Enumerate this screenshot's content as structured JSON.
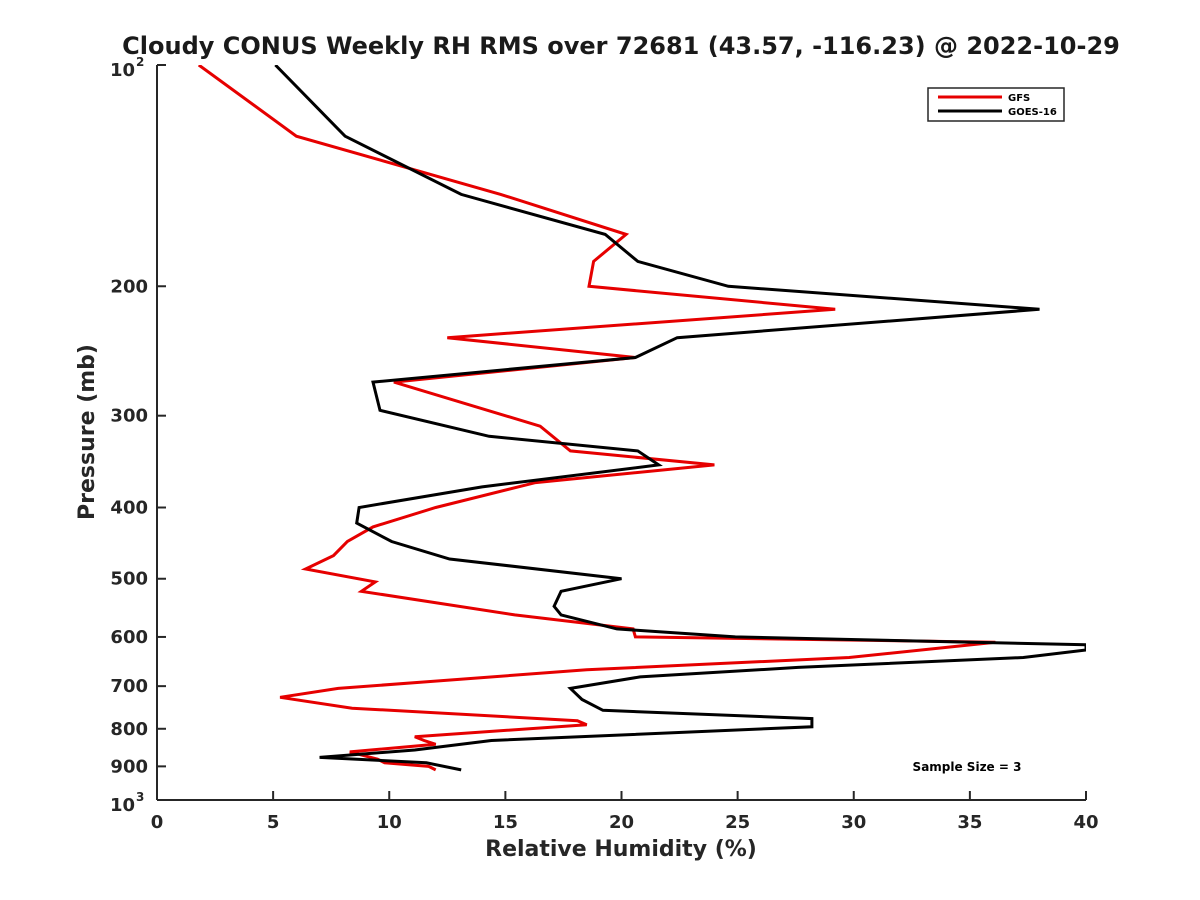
{
  "chart_data": {
    "type": "line",
    "title": "Cloudy CONUS Weekly RH RMS over 72681 (43.57, -116.23) @ 2022-10-29",
    "xlabel": "Relative Humidity (%)",
    "ylabel": "Pressure (mb)",
    "xlim": [
      0,
      40
    ],
    "ylim": [
      100,
      1000
    ],
    "y_scale": "log",
    "y_reversed": true,
    "grid": false,
    "legend_position": "top-right",
    "annotation": "Sample Size = 3",
    "x_ticks": [
      0,
      5,
      10,
      15,
      20,
      25,
      30,
      35,
      40
    ],
    "x_tick_labels": [
      "0",
      "5",
      "10",
      "15",
      "20",
      "25",
      "30",
      "35",
      "40"
    ],
    "y_ticks": [
      100,
      200,
      300,
      400,
      500,
      600,
      700,
      800,
      900,
      1000
    ],
    "y_tick_labels": [
      {
        "base": "10",
        "exp": "2"
      },
      {
        "base": "200"
      },
      {
        "base": "300"
      },
      {
        "base": "400"
      },
      {
        "base": "500"
      },
      {
        "base": "600"
      },
      {
        "base": "700"
      },
      {
        "base": "800"
      },
      {
        "base": "900"
      },
      {
        "base": "10",
        "exp": "3"
      }
    ],
    "series": [
      {
        "name": "GFS",
        "color": "#e60000",
        "points": [
          [
            1.8,
            100
          ],
          [
            6.0,
            125
          ],
          [
            14.8,
            150
          ],
          [
            20.2,
            170
          ],
          [
            18.8,
            185
          ],
          [
            18.6,
            200
          ],
          [
            29.2,
            215
          ],
          [
            12.5,
            235
          ],
          [
            20.6,
            250
          ],
          [
            10.2,
            270
          ],
          [
            16.5,
            310
          ],
          [
            17.8,
            335
          ],
          [
            24.0,
            350
          ],
          [
            16.3,
            370
          ],
          [
            12.0,
            400
          ],
          [
            9.3,
            425
          ],
          [
            8.2,
            445
          ],
          [
            7.6,
            465
          ],
          [
            6.4,
            485
          ],
          [
            9.4,
            505
          ],
          [
            8.8,
            520
          ],
          [
            15.4,
            560
          ],
          [
            20.5,
            585
          ],
          [
            20.6,
            600
          ],
          [
            36.1,
            610
          ],
          [
            29.8,
            640
          ],
          [
            18.5,
            665
          ],
          [
            11.7,
            690
          ],
          [
            7.8,
            705
          ],
          [
            5.3,
            725
          ],
          [
            8.4,
            750
          ],
          [
            18.1,
            780
          ],
          [
            18.5,
            790
          ],
          [
            11.1,
            820
          ],
          [
            11.5,
            830
          ],
          [
            12.0,
            840
          ],
          [
            8.3,
            860
          ],
          [
            9.5,
            880
          ],
          [
            9.8,
            890
          ],
          [
            11.7,
            900
          ],
          [
            12.0,
            910
          ]
        ]
      },
      {
        "name": "GOES-16",
        "color": "#000000",
        "points": [
          [
            5.1,
            100
          ],
          [
            8.1,
            125
          ],
          [
            13.1,
            150
          ],
          [
            19.3,
            170
          ],
          [
            20.7,
            185
          ],
          [
            24.6,
            200
          ],
          [
            38.0,
            215
          ],
          [
            22.4,
            235
          ],
          [
            20.6,
            250
          ],
          [
            9.3,
            270
          ],
          [
            9.6,
            295
          ],
          [
            14.3,
            320
          ],
          [
            20.7,
            335
          ],
          [
            21.6,
            350
          ],
          [
            14.0,
            375
          ],
          [
            8.7,
            400
          ],
          [
            8.6,
            420
          ],
          [
            10.1,
            445
          ],
          [
            12.6,
            470
          ],
          [
            20.0,
            500
          ],
          [
            17.4,
            520
          ],
          [
            17.1,
            545
          ],
          [
            17.4,
            560
          ],
          [
            19.8,
            585
          ],
          [
            24.9,
            600
          ],
          [
            40.0,
            615
          ],
          [
            40.0,
            625
          ],
          [
            37.3,
            640
          ],
          [
            27.6,
            660
          ],
          [
            20.8,
            680
          ],
          [
            17.8,
            705
          ],
          [
            18.3,
            730
          ],
          [
            19.2,
            755
          ],
          [
            28.2,
            775
          ],
          [
            28.2,
            795
          ],
          [
            14.4,
            830
          ],
          [
            11.1,
            855
          ],
          [
            7.0,
            875
          ],
          [
            11.6,
            890
          ],
          [
            13.1,
            910
          ]
        ]
      }
    ]
  }
}
